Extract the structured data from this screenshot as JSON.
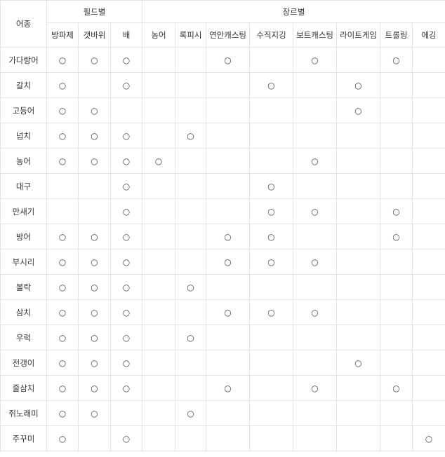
{
  "table": {
    "header": {
      "species": "어종",
      "field_group": "필드별",
      "genre_group": "장르별",
      "columns": [
        "방파제",
        "갯바위",
        "배",
        "농어",
        "록피시",
        "연안캐스팅",
        "수직지깅",
        "보트캐스팅",
        "라이트게임",
        "트롤링",
        "에깅"
      ]
    },
    "mark_symbol": "○",
    "rows": [
      {
        "fish": "가다랑어",
        "marks": [
          1,
          1,
          1,
          0,
          0,
          1,
          0,
          1,
          0,
          1,
          0
        ]
      },
      {
        "fish": "갈치",
        "marks": [
          1,
          0,
          1,
          0,
          0,
          0,
          1,
          0,
          1,
          0,
          0
        ]
      },
      {
        "fish": "고등어",
        "marks": [
          1,
          1,
          0,
          0,
          0,
          0,
          0,
          0,
          1,
          0,
          0
        ]
      },
      {
        "fish": "넙치",
        "marks": [
          1,
          1,
          1,
          0,
          1,
          0,
          0,
          0,
          0,
          0,
          0
        ]
      },
      {
        "fish": "농어",
        "marks": [
          1,
          1,
          1,
          1,
          0,
          0,
          0,
          1,
          0,
          0,
          0
        ]
      },
      {
        "fish": "대구",
        "marks": [
          0,
          0,
          1,
          0,
          0,
          0,
          1,
          0,
          0,
          0,
          0
        ]
      },
      {
        "fish": "만새기",
        "marks": [
          0,
          0,
          1,
          0,
          0,
          0,
          1,
          1,
          0,
          1,
          0
        ]
      },
      {
        "fish": "방어",
        "marks": [
          1,
          1,
          1,
          0,
          0,
          1,
          1,
          0,
          0,
          1,
          0
        ]
      },
      {
        "fish": "부시리",
        "marks": [
          1,
          1,
          1,
          0,
          0,
          1,
          1,
          1,
          0,
          0,
          0
        ]
      },
      {
        "fish": "볼락",
        "marks": [
          1,
          1,
          1,
          0,
          1,
          0,
          0,
          0,
          0,
          0,
          0
        ]
      },
      {
        "fish": "삼치",
        "marks": [
          1,
          1,
          1,
          0,
          0,
          1,
          1,
          1,
          0,
          0,
          0
        ]
      },
      {
        "fish": "우럭",
        "marks": [
          1,
          1,
          1,
          0,
          1,
          0,
          0,
          0,
          0,
          0,
          0
        ]
      },
      {
        "fish": "전갱이",
        "marks": [
          1,
          1,
          1,
          0,
          0,
          0,
          0,
          0,
          1,
          0,
          0
        ]
      },
      {
        "fish": "줄삼치",
        "marks": [
          1,
          1,
          1,
          0,
          0,
          1,
          0,
          1,
          0,
          1,
          0
        ]
      },
      {
        "fish": "쥐노래미",
        "marks": [
          1,
          1,
          0,
          0,
          1,
          0,
          0,
          0,
          0,
          0,
          0
        ]
      },
      {
        "fish": "주꾸미",
        "marks": [
          1,
          0,
          1,
          0,
          0,
          0,
          0,
          0,
          0,
          0,
          1
        ]
      }
    ]
  }
}
